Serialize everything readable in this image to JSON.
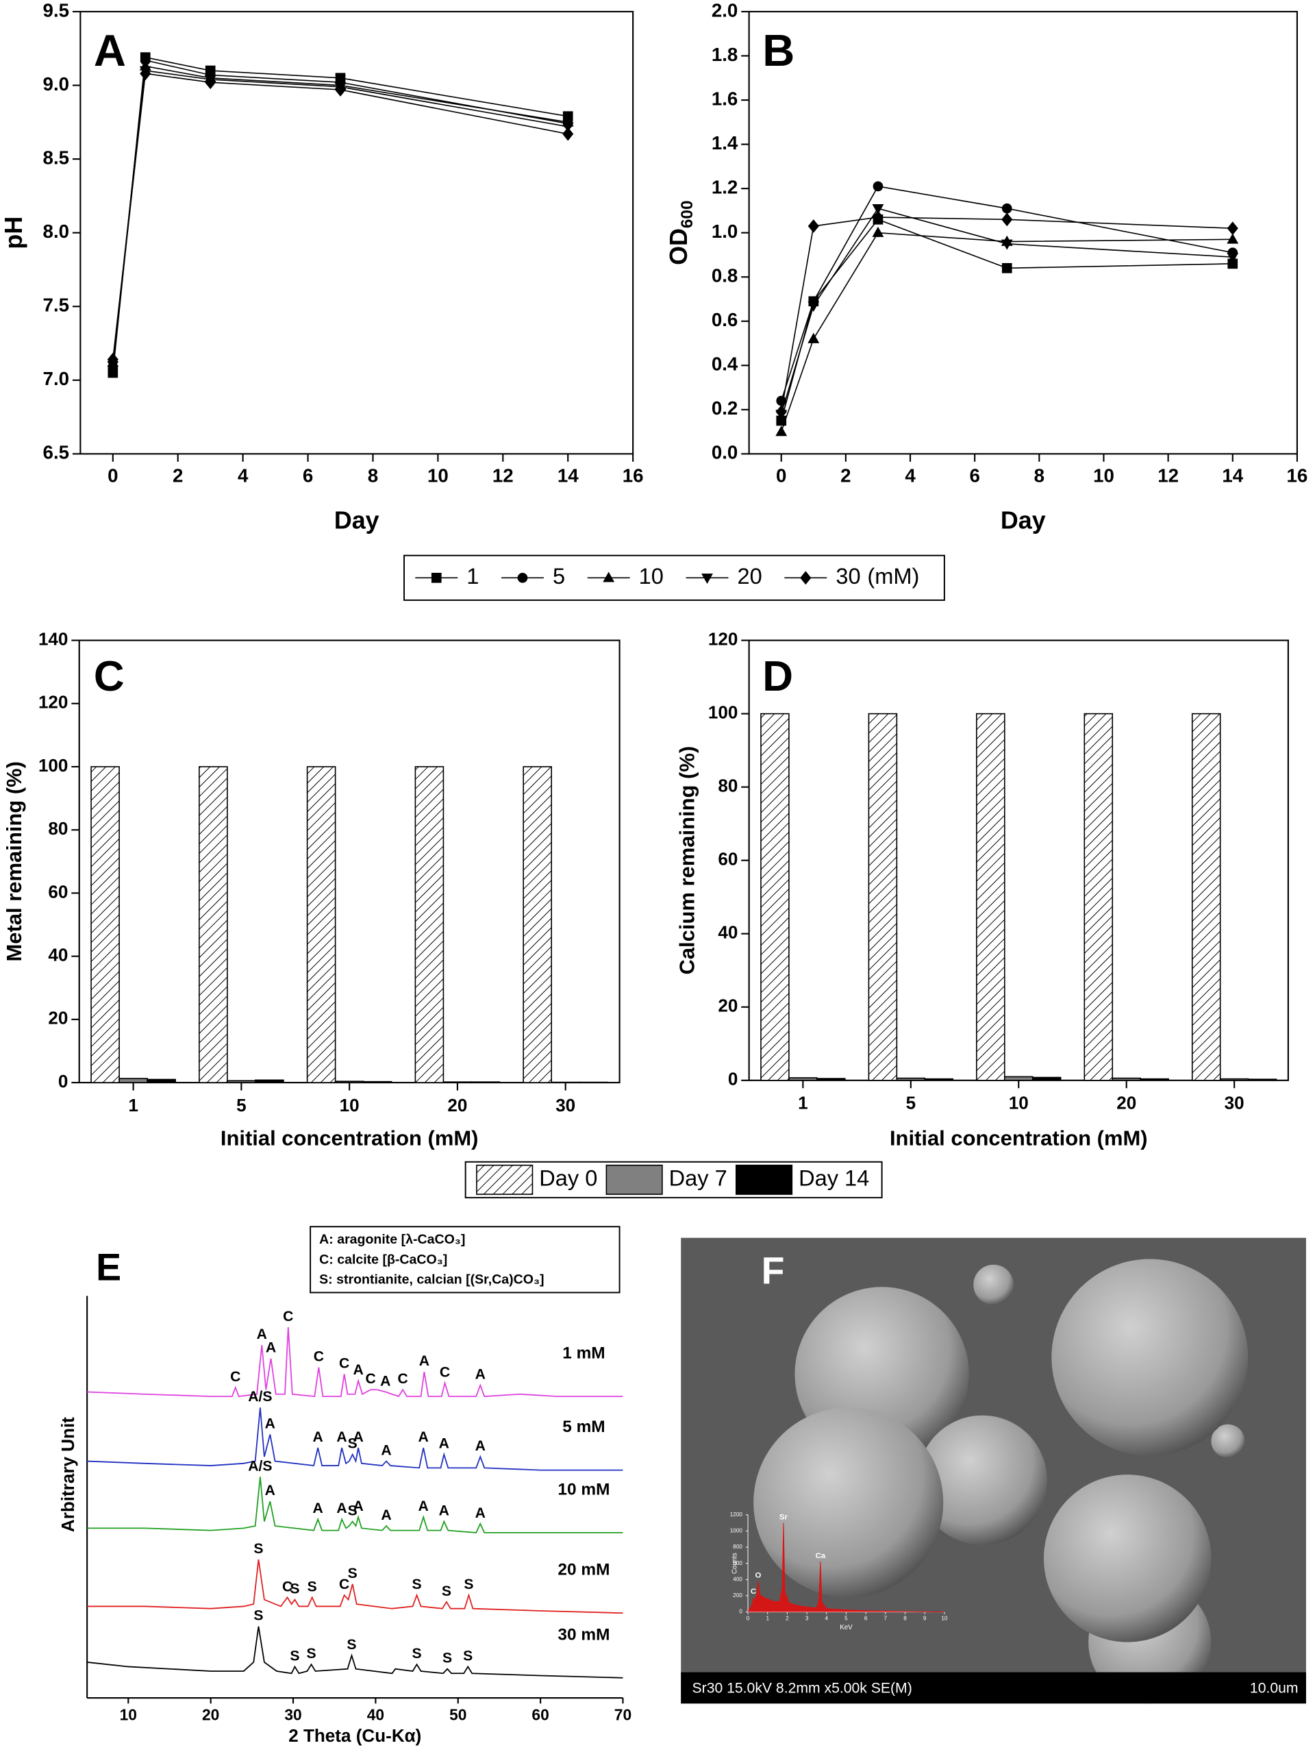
{
  "chart_data": [
    {
      "type": "line",
      "panel": "A",
      "xlabel": "Day",
      "ylabel": "pH",
      "x": [
        0,
        1,
        3,
        7,
        14
      ],
      "xlim": [
        -1,
        16
      ],
      "xticks": [
        0,
        2,
        4,
        6,
        8,
        10,
        12,
        14,
        16
      ],
      "ylim": [
        6.5,
        9.5
      ],
      "yticks": [
        6.5,
        {
          "value": 7,
          "label": "7.0"
        },
        7.5,
        {
          "value": 8,
          "label": "8.0"
        },
        8.5,
        {
          "value": 9,
          "label": "9.0"
        },
        9.5
      ],
      "legend_unit": "(mM)",
      "series": [
        {
          "name": "1",
          "marker": "square",
          "color": "#000000",
          "values": [
            7.05,
            9.19,
            9.1,
            9.05,
            8.79
          ]
        },
        {
          "name": "5",
          "marker": "circle",
          "color": "#000000",
          "values": [
            7.08,
            9.17,
            9.07,
            9.02,
            8.74
          ]
        },
        {
          "name": "10",
          "marker": "triangle",
          "color": "#000000",
          "values": [
            7.12,
            9.13,
            9.05,
            9.0,
            8.75
          ]
        },
        {
          "name": "20",
          "marker": "triangle-down",
          "color": "#000000",
          "values": [
            7.1,
            9.1,
            9.04,
            8.99,
            8.72
          ]
        },
        {
          "name": "30",
          "marker": "diamond",
          "color": "#000000",
          "values": [
            7.14,
            9.08,
            9.02,
            8.97,
            8.67
          ]
        }
      ]
    },
    {
      "type": "line",
      "panel": "B",
      "xlabel": "Day",
      "ylabel": "OD",
      "ylabel_subscript": "600",
      "x": [
        0,
        1,
        3,
        7,
        14
      ],
      "xlim": [
        -1,
        16
      ],
      "xticks": [
        0,
        2,
        4,
        6,
        8,
        10,
        12,
        14,
        16
      ],
      "ylim": [
        0,
        2
      ],
      "yticks": [
        {
          "value": 0,
          "label": "0.0"
        },
        0.2,
        0.4,
        0.6,
        0.8,
        {
          "value": 1,
          "label": "1.0"
        },
        1.2,
        1.4,
        1.6,
        1.8,
        {
          "value": 2,
          "label": "2.0"
        }
      ],
      "series": [
        {
          "marker": "square",
          "color": "#000000",
          "values": [
            0.15,
            0.69,
            1.06,
            0.84,
            0.86
          ]
        },
        {
          "marker": "circle",
          "color": "#000000",
          "values": [
            0.24,
            0.69,
            1.21,
            1.11,
            0.91
          ]
        },
        {
          "marker": "triangle",
          "color": "#000000",
          "values": [
            0.1,
            0.52,
            1.0,
            0.96,
            0.97
          ]
        },
        {
          "marker": "triangle-down",
          "color": "#000000",
          "values": [
            0.18,
            0.67,
            1.11,
            0.95,
            0.89
          ]
        },
        {
          "marker": "diamond",
          "color": "#000000",
          "values": [
            0.19,
            1.03,
            1.07,
            1.06,
            1.02
          ]
        }
      ]
    },
    {
      "type": "bar",
      "panel": "C",
      "xlabel": "Initial concentration (mM)",
      "ylabel": "Metal remaining (%)",
      "categories": [
        "1",
        "5",
        "10",
        "20",
        "30"
      ],
      "ylim": [
        0,
        140
      ],
      "yticks": [
        0,
        20,
        40,
        60,
        80,
        100,
        120,
        140
      ],
      "series": [
        {
          "name": "Day 0",
          "hatch": true,
          "color": "#ffffff",
          "values": [
            100,
            100,
            100,
            100,
            100
          ]
        },
        {
          "name": "Day 7",
          "color": "#808080",
          "values": [
            1.3,
            0.6,
            0.4,
            0.2,
            0.1
          ]
        },
        {
          "name": "Day 14",
          "color": "#000000",
          "values": [
            1.0,
            0.8,
            0.3,
            0.2,
            0.1
          ]
        }
      ]
    },
    {
      "type": "bar",
      "panel": "D",
      "xlabel": "Initial concentration (mM)",
      "ylabel": "Calcium remaining (%)",
      "categories": [
        "1",
        "5",
        "10",
        "20",
        "30"
      ],
      "ylim": [
        0,
        120
      ],
      "yticks": [
        0,
        20,
        40,
        60,
        80,
        100,
        120
      ],
      "series": [
        {
          "hatch": true,
          "color": "#ffffff",
          "values": [
            100,
            100,
            100,
            100,
            100
          ]
        },
        {
          "color": "#808080",
          "values": [
            0.7,
            0.6,
            1.0,
            0.6,
            0.4
          ]
        },
        {
          "color": "#000000",
          "values": [
            0.5,
            0.4,
            0.8,
            0.4,
            0.3
          ]
        }
      ]
    },
    {
      "type": "line",
      "panel": "E",
      "xlabel": "2 Theta (Cu-Kα)",
      "ylabel": "Arbitrary Unit",
      "xlim": [
        5,
        70
      ],
      "xticks": [
        10,
        20,
        30,
        40,
        50,
        60,
        70
      ],
      "ylim": [
        0,
        100
      ],
      "key": [
        "A: aragonite [λ-CaCO₃]",
        "C: calcite [β-CaCO₃]",
        "S: strontianite, calcian [(Sr,Ca)CO₃]"
      ],
      "series": [
        {
          "name": "1 mM",
          "color": "#e040e0",
          "x": [
            5,
            12,
            20,
            22.6,
            23,
            23.4,
            25.6,
            26.2,
            26.7,
            27.3,
            27.9,
            29,
            29.4,
            29.9,
            32.6,
            33.1,
            33.6,
            35.8,
            36.2,
            36.6,
            37.5,
            37.9,
            38.4,
            39.4,
            40.2,
            41.2,
            42.8,
            43.3,
            43.8,
            45.5,
            45.9,
            46.4,
            48,
            48.4,
            48.9,
            52.2,
            52.7,
            53.2,
            57.5,
            62,
            70
          ],
          "values": [
            68.5,
            68,
            67.5,
            67.5,
            69.5,
            67.5,
            68,
            79,
            69,
            76,
            68,
            68,
            83,
            68,
            67.5,
            74,
            67.5,
            67.5,
            72.5,
            68,
            68,
            71,
            68,
            69,
            69,
            68.5,
            67.5,
            69,
            67.5,
            67.5,
            73,
            67.5,
            67.5,
            70.5,
            67.5,
            67.5,
            70,
            67.5,
            68,
            67.5,
            67.5
          ],
          "peaks": [
            {
              "label": "C",
              "x": 23
            },
            {
              "label": "A",
              "x": 26.2
            },
            {
              "label": "A",
              "x": 27.3
            },
            {
              "label": "C",
              "x": 29.4
            },
            {
              "label": "C",
              "x": 33.1
            },
            {
              "label": "C",
              "x": 36.2
            },
            {
              "label": "A",
              "x": 37.9
            },
            {
              "label": "C",
              "x": 39.4
            },
            {
              "label": "A",
              "x": 41.2
            },
            {
              "label": "C",
              "x": 43.3
            },
            {
              "label": "A",
              "x": 45.9
            },
            {
              "label": "C",
              "x": 48.4
            },
            {
              "label": "A",
              "x": 52.7
            }
          ]
        },
        {
          "name": "5 mM",
          "color": "#2030c0",
          "x": [
            5,
            12,
            20,
            24,
            25.4,
            26,
            26.5,
            27.2,
            27.8,
            32.5,
            33,
            33.5,
            35.5,
            35.9,
            36.4,
            36.8,
            37.2,
            37.6,
            37.9,
            38.3,
            40.8,
            41.3,
            41.8,
            45.3,
            45.8,
            46.3,
            47.9,
            48.3,
            48.8,
            52.2,
            52.7,
            53.2,
            60,
            70
          ],
          "values": [
            53,
            52.5,
            52,
            52.5,
            53,
            65,
            54,
            59,
            53,
            52,
            56,
            52,
            52,
            56,
            52.5,
            53,
            54.5,
            53,
            56,
            52.5,
            52,
            53,
            52,
            51.5,
            56,
            51.5,
            51.5,
            54.5,
            51.5,
            51.5,
            54,
            51.5,
            51,
            51
          ],
          "peaks": [
            {
              "label": "A/S",
              "x": 26
            },
            {
              "label": "A",
              "x": 27.2
            },
            {
              "label": "A",
              "x": 33
            },
            {
              "label": "A",
              "x": 35.9
            },
            {
              "label": "S",
              "x": 37.2
            },
            {
              "label": "A",
              "x": 37.9
            },
            {
              "label": "A",
              "x": 41.3
            },
            {
              "label": "A",
              "x": 45.8
            },
            {
              "label": "A",
              "x": 48.3
            },
            {
              "label": "A",
              "x": 52.7
            }
          ]
        },
        {
          "name": "10 mM",
          "color": "#20a020",
          "x": [
            5,
            12,
            20,
            24,
            25.4,
            26,
            26.5,
            27.2,
            27.8,
            32.5,
            33,
            33.5,
            35.5,
            35.9,
            36.4,
            36.8,
            37.2,
            37.6,
            37.9,
            38.3,
            40.8,
            41.3,
            41.8,
            45.3,
            45.8,
            46.3,
            47.9,
            48.3,
            48.8,
            52.2,
            52.7,
            53.2,
            60,
            70
          ],
          "values": [
            38,
            38,
            37.5,
            38,
            38.5,
            49.5,
            39.5,
            44,
            38.5,
            37.5,
            40,
            37.5,
            37.5,
            40,
            38,
            38.5,
            39.5,
            38.5,
            40.5,
            38,
            37.5,
            38.5,
            37.5,
            37.5,
            40.5,
            37.5,
            37.5,
            39.5,
            37.5,
            37,
            39,
            37,
            37,
            37
          ],
          "peaks": [
            {
              "label": "A/S",
              "x": 26
            },
            {
              "label": "A",
              "x": 27.2
            },
            {
              "label": "A",
              "x": 33
            },
            {
              "label": "A",
              "x": 35.9
            },
            {
              "label": "S",
              "x": 37.2
            },
            {
              "label": "A",
              "x": 37.9
            },
            {
              "label": "A",
              "x": 41.3
            },
            {
              "label": "A",
              "x": 45.8
            },
            {
              "label": "A",
              "x": 48.3
            },
            {
              "label": "A",
              "x": 52.7
            }
          ]
        },
        {
          "name": "20 mM",
          "color": "#e02020",
          "x": [
            5,
            12,
            20,
            24,
            25.2,
            25.8,
            26.5,
            28.5,
            29.3,
            29.8,
            30.2,
            30.7,
            31.8,
            32.3,
            32.8,
            35.7,
            36.2,
            36.7,
            37.2,
            37.7,
            42,
            44.5,
            45,
            45.5,
            48.1,
            48.6,
            49.1,
            50.8,
            51.3,
            51.8,
            60,
            70
          ],
          "values": [
            20.5,
            20.5,
            20,
            20.5,
            21,
            31,
            22,
            20.5,
            22.5,
            21,
            22,
            20.5,
            20.5,
            22.5,
            20.5,
            20.5,
            23,
            22,
            25.5,
            21,
            20,
            20.5,
            23,
            20.5,
            20,
            21.5,
            20,
            20,
            23,
            20,
            19.5,
            19
          ],
          "peaks": [
            {
              "label": "S",
              "x": 25.8
            },
            {
              "label": "C",
              "x": 29.3
            },
            {
              "label": "S",
              "x": 30.2
            },
            {
              "label": "S",
              "x": 32.3
            },
            {
              "label": "C",
              "x": 36.2
            },
            {
              "label": "S",
              "x": 37.2
            },
            {
              "label": "S",
              "x": 45
            },
            {
              "label": "S",
              "x": 48.6
            },
            {
              "label": "S",
              "x": 51.3
            }
          ]
        },
        {
          "name": "30 mM",
          "color": "#000000",
          "x": [
            5,
            10,
            15,
            20,
            24,
            25.2,
            25.8,
            26.5,
            28,
            29.8,
            30.2,
            30.7,
            31.7,
            32.2,
            32.7,
            36.6,
            37.1,
            37.6,
            42,
            42.4,
            44.5,
            45,
            45.5,
            48.2,
            48.7,
            49.2,
            50.7,
            51.2,
            51.7,
            60,
            70
          ],
          "values": [
            8,
            7,
            6.5,
            6,
            6,
            8,
            16,
            8,
            6,
            5.5,
            7,
            5.5,
            6,
            7.5,
            6,
            6.5,
            9.5,
            6.5,
            5.5,
            6.5,
            6,
            7.5,
            6,
            5.5,
            6.5,
            5.5,
            5.5,
            7,
            5.5,
            5,
            4.5
          ],
          "peaks": [
            {
              "label": "S",
              "x": 25.8
            },
            {
              "label": "S",
              "x": 30.2
            },
            {
              "label": "S",
              "x": 32.2
            },
            {
              "label": "S",
              "x": 37.1
            },
            {
              "label": "S",
              "x": 45
            },
            {
              "label": "S",
              "x": 48.7
            },
            {
              "label": "S",
              "x": 51.2
            }
          ]
        }
      ]
    },
    {
      "type": "area",
      "xlabel": "KeV",
      "ylabel": "Counts",
      "axis_color": "#ffffff",
      "xlim": [
        0,
        10
      ],
      "xticks": [
        0,
        1,
        2,
        3,
        4,
        5,
        6,
        7,
        8,
        9,
        10
      ],
      "ylim": [
        0,
        1200
      ],
      "yticks": [
        0,
        200,
        400,
        600,
        800,
        1000,
        1200
      ],
      "series": [
        {
          "color": "#e01010",
          "x": [
            0,
            0.15,
            0.25,
            0.28,
            0.32,
            0.45,
            0.52,
            0.6,
            0.8,
            1.2,
            1.6,
            1.75,
            1.81,
            1.88,
            2.1,
            2.5,
            3,
            3.5,
            3.62,
            3.69,
            3.76,
            4,
            5,
            6,
            7,
            8,
            10
          ],
          "values": [
            0,
            60,
            120,
            180,
            130,
            200,
            380,
            220,
            180,
            140,
            120,
            300,
            1100,
            250,
            110,
            80,
            60,
            50,
            150,
            620,
            120,
            40,
            25,
            15,
            10,
            5,
            0
          ],
          "peaks": [
            {
              "label": "C",
              "x": 0.28
            },
            {
              "label": "O",
              "x": 0.52
            },
            {
              "label": "Sr",
              "x": 1.81
            },
            {
              "label": "Ca",
              "x": 3.69
            }
          ]
        }
      ]
    }
  ],
  "image": {
    "panel": "F",
    "info": "Sr30 15.0kV 8.2mm x5.00k SE(M)",
    "scale": "10.0um"
  }
}
